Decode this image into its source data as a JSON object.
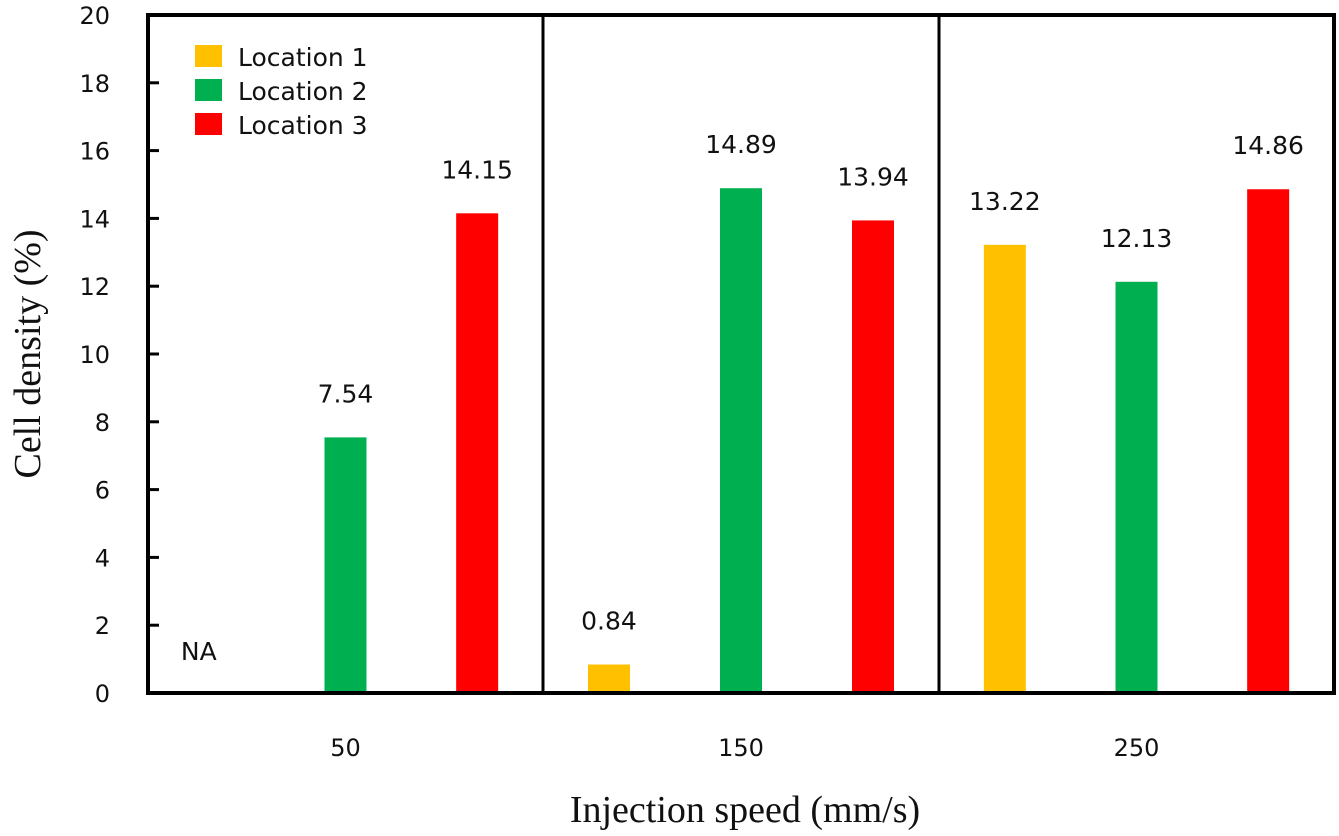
{
  "chart_data": {
    "type": "bar",
    "title": "",
    "xlabel": "Injection speed (mm/s)",
    "ylabel": "Cell density (%)",
    "ylim": [
      0,
      20
    ],
    "yticks": [
      0,
      2,
      4,
      6,
      8,
      10,
      12,
      14,
      16,
      18,
      20
    ],
    "ytick_labels": [
      "0",
      "2",
      "4",
      "6",
      "8",
      "10",
      "12",
      "14",
      "16",
      "18",
      "20"
    ],
    "categories": [
      "50",
      "150",
      "250"
    ],
    "grid": false,
    "legend_position": "top-left",
    "series": [
      {
        "name": "Location 1",
        "color": "#FFC000",
        "values": [
          null,
          0.84,
          13.22
        ],
        "labels": [
          "NA",
          "0.84",
          "13.22"
        ]
      },
      {
        "name": "Location 2",
        "color": "#00B050",
        "values": [
          7.54,
          14.89,
          12.13
        ],
        "labels": [
          "7.54",
          "14.89",
          "12.13"
        ]
      },
      {
        "name": "Location 3",
        "color": "#FF0000",
        "values": [
          14.15,
          13.94,
          14.86
        ],
        "labels": [
          "14.15",
          "13.94",
          "14.86"
        ]
      }
    ]
  }
}
